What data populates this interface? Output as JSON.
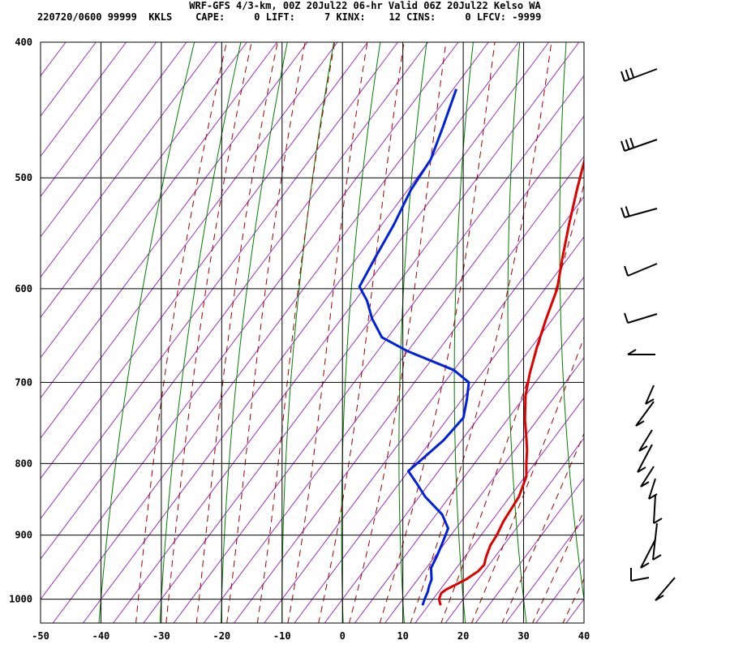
{
  "header": {
    "line1": "WRF-GFS 4/3-km, 00Z 20Jul22 06-hr Valid 06Z 20Jul22 Kelso WA",
    "line2": "220720/0600 99999  KKLS    CAPE:     0 LIFT:     7 KINX:    12 CINS:     0 LFCV: -9999"
  },
  "colors": {
    "temperature": "#e00000",
    "dewpoint": "#0020e0",
    "isotherm": "#9a30c0",
    "dry_adiabat": "#008000",
    "moist_adiabat": "#a00000",
    "grid": "#000000"
  },
  "chart_data": {
    "type": "line",
    "title": "WRF-GFS 4/3-km, 00Z 20Jul22 06-hr Valid 06Z 20Jul22 Kelso WA",
    "subtitle": "220720/0600 99999  KKLS    CAPE:     0 LIFT:     7 KINX:    12 CINS:     0 LFCV: -9999",
    "xlabel": "",
    "ylabel": "",
    "xlim": [
      -50,
      40
    ],
    "ylim": [
      1040,
      400
    ],
    "y_scale": "log-pressure",
    "grid": true,
    "x_ticks": [
      "-50",
      "-40",
      "-30",
      "-20",
      "-10",
      "0",
      "10",
      "20",
      "30",
      "40"
    ],
    "y_ticks": [
      "400",
      "500",
      "600",
      "700",
      "800",
      "900",
      "1000"
    ],
    "series": [
      {
        "points": [
          [
            17,
            1010
          ],
          [
            16,
            1000
          ],
          [
            15.6,
            990
          ],
          [
            16,
            984
          ],
          [
            17,
            976
          ],
          [
            18,
            968
          ],
          [
            19,
            955
          ],
          [
            19.2,
            945
          ],
          [
            18.5,
            932
          ],
          [
            17.8,
            915
          ],
          [
            17.6,
            900
          ],
          [
            17,
            880
          ],
          [
            16.5,
            845
          ],
          [
            15.2,
            817
          ],
          [
            13.7,
            801
          ],
          [
            12,
            782
          ],
          [
            10,
            763
          ],
          [
            8,
            745
          ],
          [
            6.5,
            730
          ],
          [
            5,
            715
          ],
          [
            3,
            690
          ],
          [
            1,
            662
          ],
          [
            -1,
            632
          ],
          [
            -3,
            600
          ],
          [
            -6,
            570
          ],
          [
            -9,
            540
          ],
          [
            -12,
            510
          ],
          [
            -14,
            490
          ],
          [
            -16,
            470
          ],
          [
            -19,
            440
          ],
          [
            -20.4,
            428
          ]
        ]
      },
      {
        "points": [
          [
            14,
            1010
          ],
          [
            13.6,
            1000
          ],
          [
            13.2,
            988
          ],
          [
            12.7,
            978
          ],
          [
            12.3,
            968
          ],
          [
            10.8,
            950
          ],
          [
            10.3,
            932
          ],
          [
            9.7,
            915
          ],
          [
            8.7,
            890
          ],
          [
            6,
            870
          ],
          [
            1,
            845
          ],
          [
            -2,
            827
          ],
          [
            -5,
            810
          ],
          [
            -4,
            790
          ],
          [
            -3,
            770
          ],
          [
            -2.5,
            742
          ],
          [
            -4.2,
            720
          ],
          [
            -6,
            700
          ],
          [
            -10,
            686
          ],
          [
            -20,
            665
          ],
          [
            -26,
            650
          ],
          [
            -30,
            630
          ],
          [
            -33,
            612
          ],
          [
            -36,
            598
          ],
          [
            -37,
            570
          ],
          [
            -38,
            540
          ],
          [
            -39.5,
            510
          ],
          [
            -40,
            485
          ],
          [
            -42,
            460
          ],
          [
            -44.5,
            432
          ]
        ]
      }
    ],
    "wind_barbs": [
      {
        "pressure": 1003,
        "direction_deg": 45,
        "speed_kt": 0
      },
      {
        "pressure": 980,
        "direction_deg": 45,
        "speed_kt": 0
      }
    ]
  }
}
